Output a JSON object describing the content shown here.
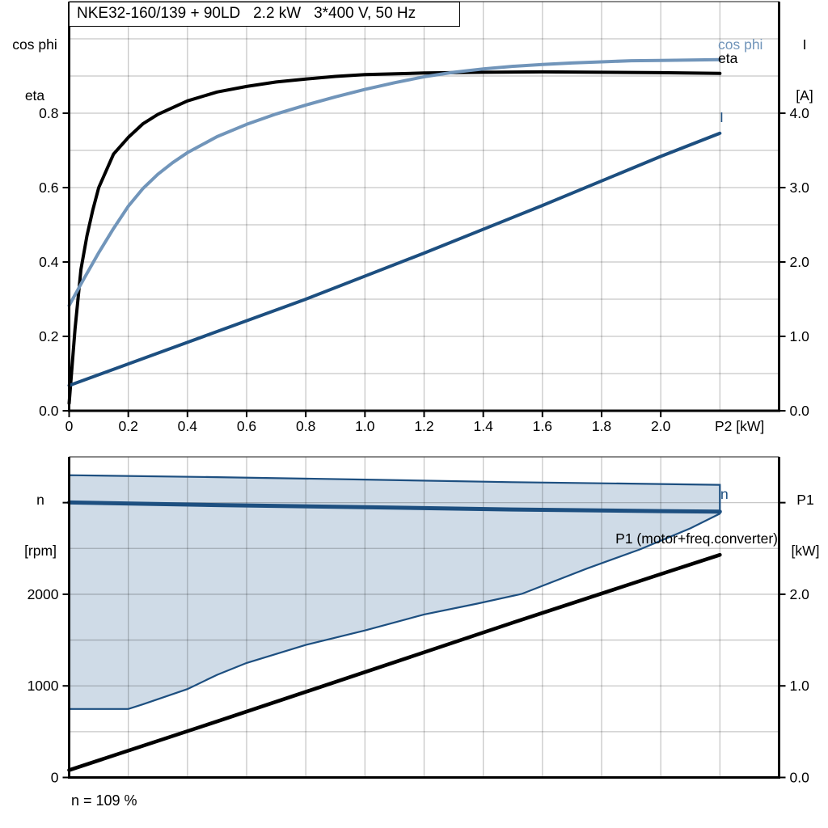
{
  "title_box": "NKE32-160/139 + 90LD   2.2 kW   3*400 V, 50 Hz",
  "chart_data": [
    {
      "type": "line",
      "id": "efficiency-chart",
      "title": "NKE32-160/139 + 90LD   2.2 kW   3*400 V, 50 Hz",
      "x_axis": {
        "title": "P2 [kW]",
        "range": [
          0,
          2.4
        ],
        "ticks": [
          {
            "v": 0,
            "label": "0"
          },
          {
            "v": 0.2,
            "label": "0.2"
          },
          {
            "v": 0.4,
            "label": "0.4"
          },
          {
            "v": 0.6,
            "label": "0.6"
          },
          {
            "v": 0.8,
            "label": "0.8"
          },
          {
            "v": 1.0,
            "label": "1.0"
          },
          {
            "v": 1.2,
            "label": "1.2"
          },
          {
            "v": 1.4,
            "label": "1.4"
          },
          {
            "v": 1.6,
            "label": "1.6"
          },
          {
            "v": 1.8,
            "label": "1.8"
          },
          {
            "v": 2.0,
            "label": "2.0"
          }
        ],
        "grid": [
          0.2,
          0.4,
          0.6,
          0.8,
          1.0,
          1.2,
          1.4,
          1.6,
          1.8,
          2.0,
          2.2
        ]
      },
      "left_axis": {
        "title": [
          "cos phi",
          "eta"
        ],
        "range": [
          0,
          1.1
        ],
        "ticks": [
          {
            "v": 0.0,
            "label": "0.0"
          },
          {
            "v": 0.2,
            "label": "0.2"
          },
          {
            "v": 0.4,
            "label": "0.4"
          },
          {
            "v": 0.6,
            "label": "0.6"
          },
          {
            "v": 0.8,
            "label": "0.8"
          }
        ],
        "grid": [
          0.1,
          0.2,
          0.3,
          0.4,
          0.5,
          0.6,
          0.7,
          0.8,
          0.9,
          1.0
        ]
      },
      "right_axis": {
        "title": [
          "I",
          "[A]"
        ],
        "range": [
          0,
          5.5
        ],
        "ticks": [
          {
            "v": 0.0,
            "label": "0.0"
          },
          {
            "v": 1.0,
            "label": "1.0"
          },
          {
            "v": 2.0,
            "label": "2.0"
          },
          {
            "v": 3.0,
            "label": "3.0"
          },
          {
            "v": 4.0,
            "label": "4.0"
          }
        ]
      },
      "series": [
        {
          "name": "eta",
          "axis": "left",
          "color": "#000000",
          "width": 4,
          "points": [
            [
              0,
              0.02
            ],
            [
              0.02,
              0.22
            ],
            [
              0.04,
              0.38
            ],
            [
              0.06,
              0.47
            ],
            [
              0.08,
              0.54
            ],
            [
              0.1,
              0.6
            ],
            [
              0.15,
              0.69
            ],
            [
              0.2,
              0.735
            ],
            [
              0.25,
              0.772
            ],
            [
              0.3,
              0.797
            ],
            [
              0.4,
              0.833
            ],
            [
              0.5,
              0.857
            ],
            [
              0.6,
              0.872
            ],
            [
              0.7,
              0.884
            ],
            [
              0.8,
              0.892
            ],
            [
              0.9,
              0.899
            ],
            [
              1.0,
              0.904
            ],
            [
              1.2,
              0.908
            ],
            [
              1.4,
              0.91
            ],
            [
              1.6,
              0.911
            ],
            [
              1.8,
              0.91
            ],
            [
              2.0,
              0.909
            ],
            [
              2.2,
              0.907
            ]
          ]
        },
        {
          "name": "cos phi",
          "axis": "left",
          "color": "#7195ba",
          "width": 4,
          "points": [
            [
              0,
              0.283
            ],
            [
              0.05,
              0.355
            ],
            [
              0.1,
              0.425
            ],
            [
              0.15,
              0.49
            ],
            [
              0.2,
              0.55
            ],
            [
              0.25,
              0.598
            ],
            [
              0.3,
              0.636
            ],
            [
              0.35,
              0.667
            ],
            [
              0.4,
              0.694
            ],
            [
              0.5,
              0.737
            ],
            [
              0.6,
              0.77
            ],
            [
              0.7,
              0.798
            ],
            [
              0.8,
              0.822
            ],
            [
              0.9,
              0.844
            ],
            [
              1.0,
              0.864
            ],
            [
              1.1,
              0.882
            ],
            [
              1.2,
              0.898
            ],
            [
              1.3,
              0.91
            ],
            [
              1.4,
              0.919
            ],
            [
              1.5,
              0.926
            ],
            [
              1.6,
              0.931
            ],
            [
              1.7,
              0.935
            ],
            [
              1.8,
              0.938
            ],
            [
              1.9,
              0.941
            ],
            [
              2.0,
              0.942
            ],
            [
              2.1,
              0.943
            ],
            [
              2.2,
              0.944
            ]
          ]
        },
        {
          "name": "I",
          "axis": "right",
          "color": "#1d4f80",
          "width": 4,
          "points": [
            [
              0,
              0.34
            ],
            [
              0.4,
              0.92
            ],
            [
              0.8,
              1.5
            ],
            [
              1.2,
              2.12
            ],
            [
              1.6,
              2.76
            ],
            [
              2.0,
              3.42
            ],
            [
              2.2,
              3.73
            ]
          ]
        }
      ],
      "annotations": [
        {
          "text": "cos phi",
          "color": "#7195ba"
        },
        {
          "text": "eta",
          "color": "#000000"
        },
        {
          "text": "I",
          "color": "#1d4f80"
        }
      ]
    },
    {
      "type": "line",
      "id": "speed-power-chart",
      "x_axis": {
        "title": "",
        "range": [
          0,
          2.4
        ],
        "ticks": [],
        "grid": [
          0.2,
          0.4,
          0.6,
          0.8,
          1.0,
          1.2,
          1.4,
          1.6,
          1.8,
          2.0,
          2.2
        ]
      },
      "left_axis": {
        "title": [
          "n",
          "[rpm]"
        ],
        "range": [
          0,
          3500
        ],
        "ticks": [
          {
            "v": 0,
            "label": "0"
          },
          {
            "v": 1000,
            "label": "1000"
          },
          {
            "v": 2000,
            "label": "2000"
          },
          {
            "v": 3000,
            "label": ""
          }
        ],
        "grid": [
          500,
          1000,
          1500,
          2000,
          2500,
          3000
        ]
      },
      "right_axis": {
        "title": [
          "P1",
          "[kW]"
        ],
        "range": [
          0,
          3.5
        ],
        "ticks": [
          {
            "v": 0.0,
            "label": "0.0"
          },
          {
            "v": 1.0,
            "label": "1.0"
          },
          {
            "v": 2.0,
            "label": "2.0"
          },
          {
            "v": 3.0,
            "label": ""
          }
        ]
      },
      "series": [
        {
          "name": "speed-range-band",
          "type": "band",
          "axis": "left",
          "fill": "#cfdbe7",
          "stroke": "#1d4f80",
          "stroke_width": 2.2,
          "upper": [
            [
              0,
              3300
            ],
            [
              0.5,
              3278
            ],
            [
              1.0,
              3252
            ],
            [
              1.5,
              3224
            ],
            [
              2.0,
              3203
            ],
            [
              2.2,
              3195
            ]
          ],
          "lower": [
            [
              0,
              748
            ],
            [
              0.2,
              748
            ],
            [
              0.25,
              800
            ],
            [
              0.4,
              965
            ],
            [
              0.5,
              1120
            ],
            [
              0.6,
              1250
            ],
            [
              0.8,
              1447
            ],
            [
              1.0,
              1605
            ],
            [
              1.2,
              1780
            ],
            [
              1.38,
              1898
            ],
            [
              1.53,
              2004
            ],
            [
              1.75,
              2280
            ],
            [
              1.93,
              2490
            ],
            [
              2.1,
              2720
            ],
            [
              2.2,
              2880
            ]
          ]
        },
        {
          "name": "n",
          "axis": "left",
          "color": "#1d4f80",
          "width": 5,
          "points": [
            [
              0,
              3002
            ],
            [
              0.5,
              2974
            ],
            [
              1.0,
              2950
            ],
            [
              1.5,
              2925
            ],
            [
              2.0,
              2908
            ],
            [
              2.2,
              2902
            ]
          ]
        },
        {
          "name": "P1 (motor+freq.converter)",
          "axis": "right",
          "color": "#000000",
          "width": 4.6,
          "points": [
            [
              0,
              0.08
            ],
            [
              0.5,
              0.612
            ],
            [
              1.0,
              1.15
            ],
            [
              1.5,
              1.69
            ],
            [
              2.0,
              2.22
            ],
            [
              2.2,
              2.43
            ]
          ]
        }
      ],
      "annotations": [
        {
          "text": "n",
          "color": "#1d4f80"
        },
        {
          "text": "P1 (motor+freq.converter)",
          "color": "#000000"
        }
      ],
      "footnote": "n = 109 %"
    }
  ]
}
